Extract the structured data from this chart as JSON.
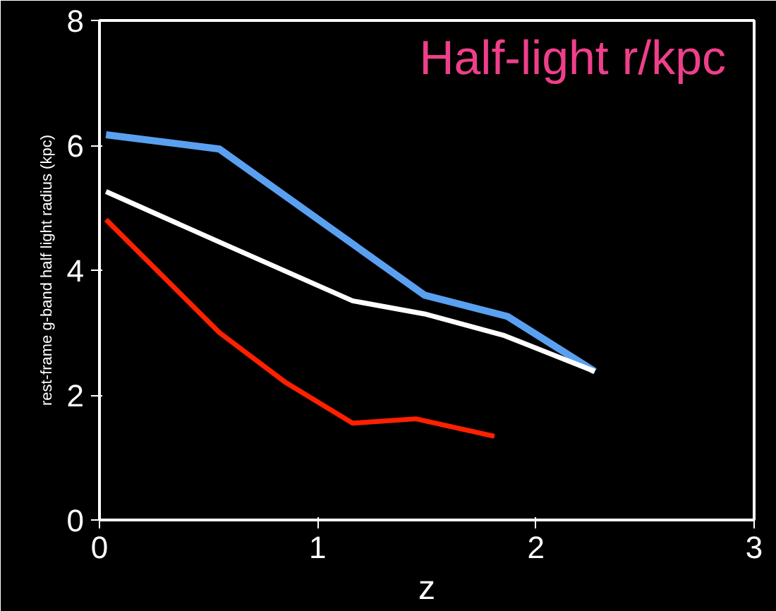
{
  "chart_data": {
    "type": "line",
    "title": "Half-light r/kpc",
    "xlabel": "z",
    "ylabel": "rest-frame g-band half light radius (kpc)",
    "xlim": [
      0,
      3
    ],
    "ylim": [
      0,
      8
    ],
    "xticks": [
      0,
      1,
      2,
      3
    ],
    "yticks": [
      0,
      2,
      4,
      6,
      8
    ],
    "grid": false,
    "marker": "none",
    "line_style": "solid",
    "series": [
      {
        "color": "#5aa0f0",
        "x": [
          0.03,
          0.55,
          1.49,
          1.87,
          2.27
        ],
        "values": [
          6.17,
          5.94,
          3.6,
          3.26,
          2.38
        ]
      },
      {
        "color": "#ffffff",
        "x": [
          0.03,
          0.55,
          1.16,
          1.49,
          1.85,
          2.27
        ],
        "values": [
          5.26,
          4.45,
          3.51,
          3.3,
          2.96,
          2.38
        ]
      },
      {
        "color": "#ff2000",
        "x": [
          0.03,
          0.55,
          0.85,
          1.16,
          1.45,
          1.81
        ],
        "values": [
          4.81,
          3.0,
          2.21,
          1.55,
          1.62,
          1.34
        ]
      }
    ]
  }
}
